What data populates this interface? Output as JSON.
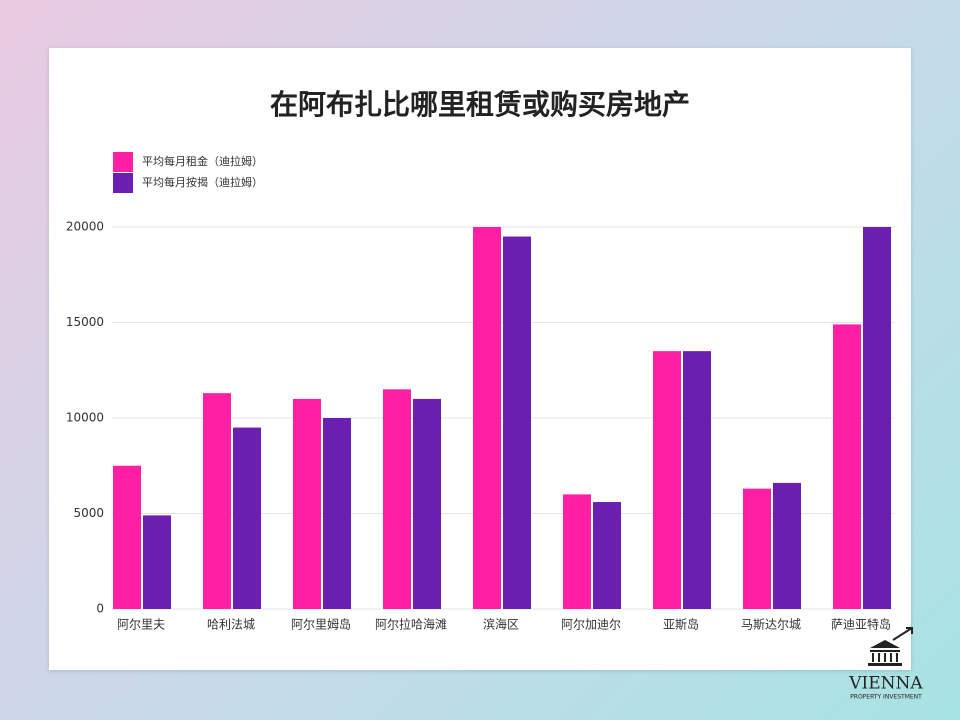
{
  "chart_data": {
    "type": "bar",
    "title": "在阿布扎比哪里租赁或购买房地产",
    "categories": [
      "阿尔里夫",
      "哈利法城",
      "阿尔里姆岛",
      "阿尔拉哈海滩",
      "滨海区",
      "阿尔加迪尔",
      "亚斯岛",
      "马斯达尔城",
      "萨迪亚特岛"
    ],
    "series": [
      {
        "name": "平均每月租金（迪拉姆）",
        "color": "#ff1fa5",
        "values": [
          7500,
          11300,
          11000,
          11500,
          20000,
          6000,
          13500,
          6300,
          14900
        ]
      },
      {
        "name": "平均每月按揭（迪拉姆）",
        "color": "#6a1fb0",
        "values": [
          4900,
          9500,
          10000,
          11000,
          19500,
          5600,
          13500,
          6600,
          20000
        ]
      }
    ],
    "ylim": [
      0,
      20000
    ],
    "yticks": [
      0,
      5000,
      10000,
      15000,
      20000
    ],
    "grid": true,
    "legend": "top-left"
  },
  "logo": {
    "name": "VIENNA",
    "tagline": "PROPERTY INVESTMENT"
  }
}
